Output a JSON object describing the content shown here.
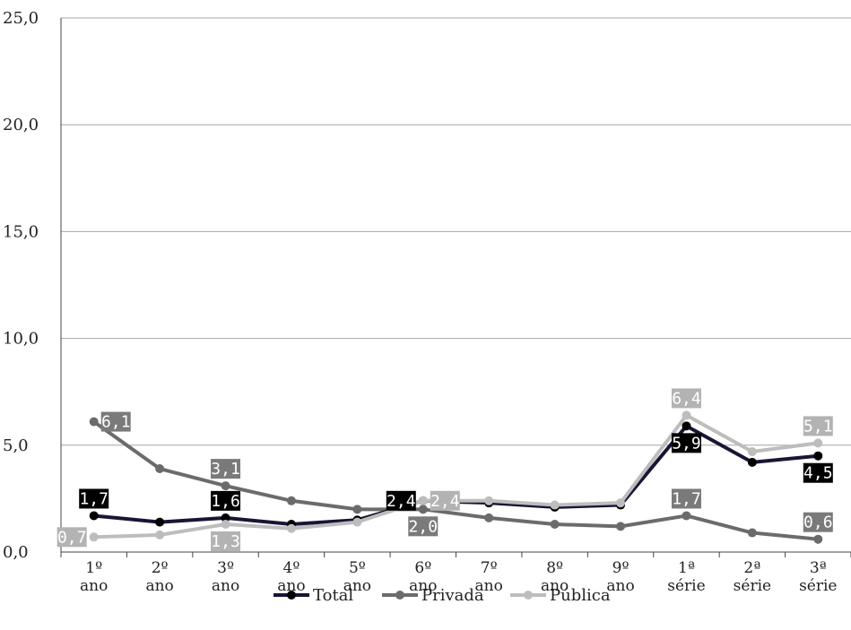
{
  "chart_data": {
    "type": "line",
    "categories": [
      [
        "1º",
        "ano"
      ],
      [
        "2º",
        "ano"
      ],
      [
        "3º",
        "ano"
      ],
      [
        "4º",
        "ano"
      ],
      [
        "5º",
        "ano"
      ],
      [
        "6º",
        "ano"
      ],
      [
        "7º",
        "ano"
      ],
      [
        "8º",
        "ano"
      ],
      [
        "9º",
        "ano"
      ],
      [
        "1ª",
        "série"
      ],
      [
        "2ª",
        "série"
      ],
      [
        "3ª",
        "série"
      ]
    ],
    "ylim": [
      0,
      25
    ],
    "yticks": [
      0,
      5,
      10,
      15,
      20,
      25
    ],
    "ytick_labels": [
      "0,0",
      "5,0",
      "10,0",
      "15,0",
      "20,0",
      "25,0"
    ],
    "grid": true,
    "legend_position": "bottom",
    "series": [
      {
        "name": "Total",
        "color": "#1b1435",
        "marker": "#000000",
        "label_bg": "#000000",
        "values": [
          1.7,
          1.4,
          1.6,
          1.3,
          1.5,
          2.4,
          2.3,
          2.1,
          2.2,
          5.9,
          4.2,
          4.5
        ]
      },
      {
        "name": "Privada",
        "color": "#6b6b6b",
        "marker": "#6b6b6b",
        "label_bg": "#7a7a7a",
        "values": [
          6.1,
          3.9,
          3.1,
          2.4,
          2.0,
          2.0,
          1.6,
          1.3,
          1.2,
          1.7,
          0.9,
          0.6
        ]
      },
      {
        "name": "Pública",
        "color": "#bdbdbd",
        "marker": "#bdbdbd",
        "label_bg": "#b3b3b3",
        "values": [
          0.7,
          0.8,
          1.3,
          1.1,
          1.4,
          2.4,
          2.4,
          2.2,
          2.3,
          6.4,
          4.7,
          5.1
        ]
      }
    ],
    "data_labels": [
      {
        "series": 0,
        "index": 0,
        "text": "1,7",
        "pos": "above"
      },
      {
        "series": 0,
        "index": 2,
        "text": "1,6",
        "pos": "above"
      },
      {
        "series": 0,
        "index": 5,
        "text": "2,4",
        "pos": "left"
      },
      {
        "series": 0,
        "index": 9,
        "text": "5,9",
        "pos": "below"
      },
      {
        "series": 0,
        "index": 11,
        "text": "4,5",
        "pos": "below"
      },
      {
        "series": 1,
        "index": 0,
        "text": "6,1",
        "pos": "right"
      },
      {
        "series": 1,
        "index": 2,
        "text": "3,1",
        "pos": "above"
      },
      {
        "series": 1,
        "index": 5,
        "text": "2,0",
        "pos": "below"
      },
      {
        "series": 1,
        "index": 9,
        "text": "1,7",
        "pos": "above"
      },
      {
        "series": 1,
        "index": 11,
        "text": "0,6",
        "pos": "above"
      },
      {
        "series": 2,
        "index": 0,
        "text": "0,7",
        "pos": "left"
      },
      {
        "series": 2,
        "index": 2,
        "text": "1,3",
        "pos": "below"
      },
      {
        "series": 2,
        "index": 5,
        "text": "2,4",
        "pos": "right"
      },
      {
        "series": 2,
        "index": 9,
        "text": "6,4",
        "pos": "above"
      },
      {
        "series": 2,
        "index": 11,
        "text": "5,1",
        "pos": "above"
      }
    ]
  }
}
